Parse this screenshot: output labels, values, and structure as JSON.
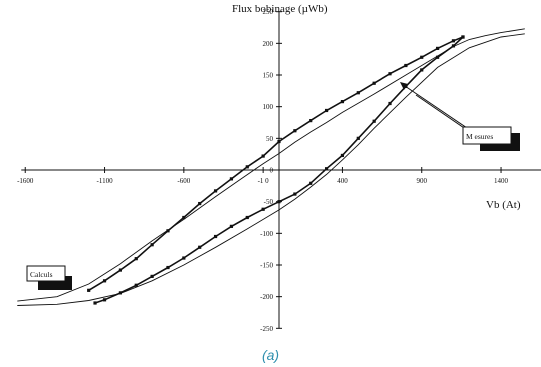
{
  "caption": "(a)",
  "colors": {
    "axis": "#111111",
    "curve": "#111111",
    "caption": "#2e8fae"
  },
  "chart_data": {
    "type": "line",
    "title": "",
    "xlabel": "Vb (At)",
    "ylabel": "Flux bobinage (µWb)",
    "xlim": [
      -1600,
      1550
    ],
    "ylim": [
      -250,
      250
    ],
    "x_ticks": [
      -1600,
      -1100,
      -600,
      -100,
      400,
      900,
      1400
    ],
    "y_ticks": [
      -250,
      -200,
      -150,
      -100,
      -50,
      0,
      50,
      100,
      150,
      200,
      250
    ],
    "x_tick_labels": [
      "-1600",
      "-1100",
      "-600",
      "-1 0",
      "400",
      "900",
      "1400"
    ],
    "y_tick_labels": [
      "-250",
      "-200",
      "-150",
      "-100",
      "-50",
      "0",
      "50",
      "100",
      "150",
      "200",
      "250"
    ],
    "grid": false,
    "annotations": [
      {
        "text": "M esures",
        "points_to": "measured curves (upper and lower branch)"
      },
      {
        "text": "Calculs",
        "points_to": "computed curves"
      }
    ],
    "series": [
      {
        "name": "Calculs",
        "style": "line",
        "x": [
          -1650,
          -1400,
          -1200,
          -1000,
          -800,
          -600,
          -400,
          -250,
          -100,
          0,
          100,
          200,
          300,
          400,
          600,
          800,
          1000,
          1100,
          1200,
          1300,
          1400,
          1550
        ],
        "y": [
          -207,
          -200,
          -180,
          -148,
          -112,
          -78,
          -42,
          -16,
          10,
          26,
          44,
          60,
          75,
          91,
          120,
          150,
          180,
          195,
          206,
          212,
          217,
          223
        ]
      },
      {
        "name": "Calculs",
        "style": "line",
        "x": [
          -1650,
          -1400,
          -1200,
          -1000,
          -800,
          -600,
          -400,
          -200,
          0,
          100,
          200,
          300,
          400,
          500,
          600,
          800,
          1000,
          1200,
          1400,
          1550
        ],
        "y": [
          -214,
          -212,
          -206,
          -195,
          -175,
          -150,
          -122,
          -93,
          -63,
          -46,
          -27,
          -7,
          16,
          40,
          66,
          115,
          162,
          193,
          210,
          215
        ]
      },
      {
        "name": "M esures",
        "style": "markers",
        "x": [
          -1200,
          -1100,
          -1000,
          -900,
          -800,
          -700,
          -600,
          -500,
          -400,
          -300,
          -200,
          -100,
          0,
          100,
          200,
          300,
          400,
          500,
          600,
          700,
          800,
          900,
          1000,
          1100,
          1160
        ],
        "y": [
          -190,
          -175,
          -158,
          -140,
          -118,
          -96,
          -75,
          -53,
          -33,
          -14,
          5,
          22,
          45,
          62,
          78,
          94,
          108,
          122,
          137,
          152,
          165,
          178,
          192,
          204,
          210
        ]
      },
      {
        "name": "M esures",
        "style": "markers",
        "x": [
          -1160,
          -1100,
          -1000,
          -900,
          -800,
          -700,
          -600,
          -500,
          -400,
          -300,
          -200,
          -100,
          0,
          100,
          200,
          300,
          400,
          500,
          600,
          700,
          800,
          900,
          1000,
          1100,
          1160
        ],
        "y": [
          -210,
          -205,
          -194,
          -182,
          -168,
          -154,
          -139,
          -122,
          -105,
          -89,
          -75,
          -62,
          -50,
          -38,
          -21,
          2,
          23,
          50,
          77,
          105,
          132,
          158,
          178,
          196,
          210
        ]
      }
    ]
  }
}
